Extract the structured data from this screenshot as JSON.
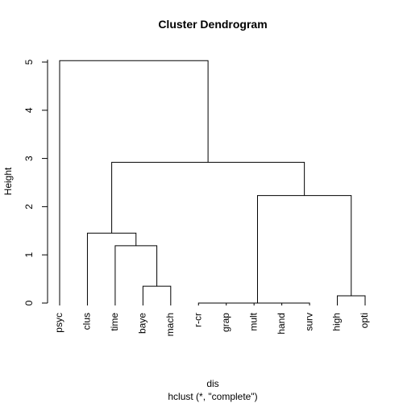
{
  "chart_data": {
    "type": "dendrogram",
    "title": "Cluster Dendrogram",
    "ylabel": "Height",
    "xlabel": "dis",
    "sublabel": "hclust (*, \"complete\")",
    "ylim": [
      0,
      5.05
    ],
    "yticks": [
      0,
      1,
      2,
      3,
      4,
      5
    ],
    "leaves": [
      "psyc",
      "clus",
      "time",
      "baye",
      "mach",
      "r-cr",
      "grap",
      "mult",
      "hand",
      "surv",
      "high",
      "opti"
    ],
    "merges": [
      {
        "left": "grap",
        "right": "mult",
        "height": 0.0
      },
      {
        "left": "hand",
        "right": "surv",
        "height": 0.0
      },
      {
        "left": "r-cr",
        "right": "merge-1",
        "height": 0.0
      },
      {
        "left": "merge-3",
        "right": "merge-2",
        "height": 0.0
      },
      {
        "left": "high",
        "right": "opti",
        "height": 0.15
      },
      {
        "left": "baye",
        "right": "mach",
        "height": 0.35
      },
      {
        "left": "time",
        "right": "merge-6",
        "height": 1.19
      },
      {
        "left": "clus",
        "right": "merge-7",
        "height": 1.45
      },
      {
        "left": "merge-4",
        "right": "merge-5",
        "height": 2.23
      },
      {
        "left": "merge-8",
        "right": "merge-9",
        "height": 2.92
      },
      {
        "left": "psyc",
        "right": "merge-10",
        "height": 5.03
      }
    ]
  }
}
